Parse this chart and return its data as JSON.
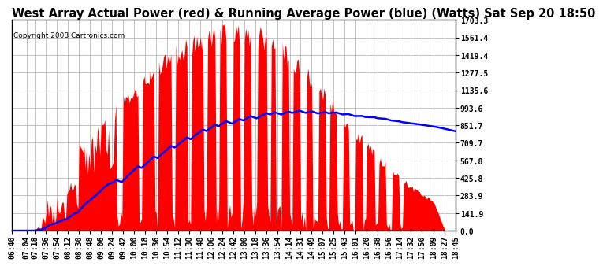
{
  "title": "West Array Actual Power (red) & Running Average Power (blue) (Watts) Sat Sep 20 18:50",
  "copyright": "Copyright 2008 Cartronics.com",
  "y_max": 1703.3,
  "y_min": 0.0,
  "y_ticks": [
    0.0,
    141.9,
    283.9,
    425.8,
    567.8,
    709.7,
    851.7,
    993.6,
    1135.6,
    1277.5,
    1419.4,
    1561.4,
    1703.3
  ],
  "background_color": "#ffffff",
  "grid_color": "#aaaaaa",
  "fill_color": "#ff0000",
  "line_color": "#0000ff",
  "title_fontsize": 10.5,
  "copyright_fontsize": 6.5,
  "tick_fontsize": 7,
  "x_start_min": 400,
  "x_end_min": 1125,
  "interval_min": 2,
  "x_tick_labels": [
    "06:40",
    "07:04",
    "07:18",
    "07:36",
    "07:54",
    "08:12",
    "08:30",
    "08:48",
    "09:06",
    "09:24",
    "09:42",
    "10:00",
    "10:18",
    "10:36",
    "10:54",
    "11:12",
    "11:30",
    "11:48",
    "12:06",
    "12:24",
    "12:42",
    "13:00",
    "13:18",
    "13:36",
    "13:54",
    "14:14",
    "14:31",
    "14:49",
    "15:07",
    "15:25",
    "15:43",
    "16:01",
    "16:20",
    "16:38",
    "16:56",
    "17:14",
    "17:32",
    "17:50",
    "18:09",
    "18:27",
    "18:45"
  ],
  "x_tick_minutes": [
    400,
    424,
    438,
    456,
    474,
    492,
    510,
    528,
    546,
    564,
    582,
    600,
    618,
    636,
    654,
    672,
    690,
    708,
    726,
    744,
    762,
    780,
    798,
    816,
    834,
    854,
    871,
    889,
    907,
    925,
    943,
    961,
    980,
    998,
    1016,
    1034,
    1052,
    1070,
    1089,
    1107,
    1125
  ]
}
